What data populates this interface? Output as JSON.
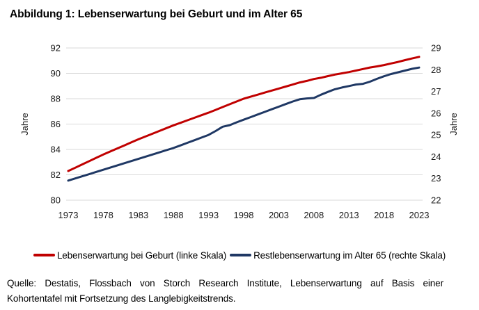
{
  "figure": {
    "title": "Abbildung 1: Lebenserwartung bei Geburt und im Alter 65"
  },
  "chart_data": {
    "type": "line",
    "title": "Abbildung 1: Lebenserwartung bei Geburt und im Alter 65",
    "grid": true,
    "grid_color": "#d9d9d9",
    "text_color": "#1a1a1a",
    "legend_position": "bottom",
    "x": [
      1973,
      1974,
      1975,
      1976,
      1977,
      1978,
      1979,
      1980,
      1981,
      1982,
      1983,
      1984,
      1985,
      1986,
      1987,
      1988,
      1989,
      1990,
      1991,
      1992,
      1993,
      1994,
      1995,
      1996,
      1997,
      1998,
      1999,
      2000,
      2001,
      2002,
      2003,
      2004,
      2005,
      2006,
      2007,
      2008,
      2009,
      2010,
      2011,
      2012,
      2013,
      2014,
      2015,
      2016,
      2017,
      2018,
      2019,
      2020,
      2021,
      2022,
      2023
    ],
    "x_tick_labels": [
      "1973",
      "1978",
      "1983",
      "1988",
      "1993",
      "1998",
      "2003",
      "2008",
      "2013",
      "2018",
      "2023"
    ],
    "left_axis": {
      "label": "Jahre",
      "min": 80,
      "max": 92,
      "ticks": [
        "80",
        "82",
        "84",
        "86",
        "88",
        "90",
        "92"
      ]
    },
    "right_axis": {
      "label": "Jahre",
      "min": 22,
      "max": 29,
      "ticks": [
        "22",
        "23",
        "24",
        "25",
        "26",
        "27",
        "28",
        "29"
      ]
    },
    "series": [
      {
        "name": "Lebenserwartung bei Geburt (linke Skala)",
        "axis": "left",
        "color": "#c00000",
        "values": [
          82.3,
          82.56,
          82.82,
          83.08,
          83.34,
          83.6,
          83.84,
          84.08,
          84.32,
          84.56,
          84.8,
          85.02,
          85.24,
          85.46,
          85.68,
          85.9,
          86.1,
          86.3,
          86.5,
          86.7,
          86.9,
          87.12,
          87.34,
          87.56,
          87.78,
          88.0,
          88.16,
          88.32,
          88.48,
          88.64,
          88.8,
          88.96,
          89.12,
          89.28,
          89.4,
          89.55,
          89.65,
          89.78,
          89.9,
          90.0,
          90.1,
          90.22,
          90.34,
          90.46,
          90.55,
          90.65,
          90.78,
          90.9,
          91.04,
          91.17,
          91.3
        ]
      },
      {
        "name": "Restlebenserwartung im Alter 65 (rechte Skala)",
        "axis": "right",
        "color": "#1f3864",
        "values": [
          22.9,
          23.0,
          23.1,
          23.2,
          23.3,
          23.4,
          23.5,
          23.6,
          23.7,
          23.8,
          23.9,
          24.0,
          24.1,
          24.2,
          24.3,
          24.4,
          24.52,
          24.64,
          24.76,
          24.88,
          25.0,
          25.18,
          25.38,
          25.45,
          25.58,
          25.7,
          25.82,
          25.94,
          26.06,
          26.18,
          26.3,
          26.42,
          26.54,
          26.64,
          26.68,
          26.7,
          26.85,
          26.98,
          27.1,
          27.18,
          27.25,
          27.32,
          27.35,
          27.45,
          27.58,
          27.7,
          27.8,
          27.88,
          27.96,
          28.04,
          28.1
        ]
      }
    ]
  },
  "source": {
    "line1": "Quelle: Destatis, Flossbach von Storch Research Institute, Lebenserwartung auf Basis einer",
    "line2": "Kohortentafel mit Fortsetzung des Langlebigkeitstrends."
  }
}
